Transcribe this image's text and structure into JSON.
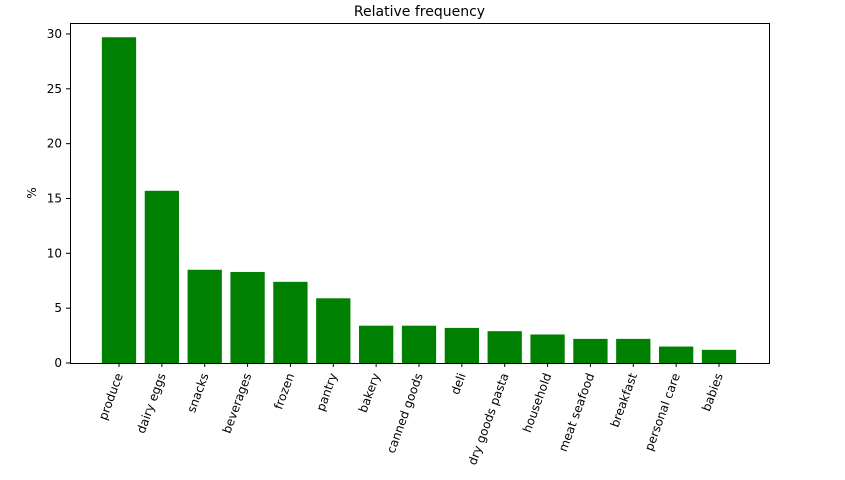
{
  "chart_data": {
    "type": "bar",
    "title": "Relative frequency",
    "xlabel": "",
    "ylabel": "%",
    "ylim": [
      0,
      31
    ],
    "yticks": [
      0,
      5,
      10,
      15,
      20,
      25,
      30
    ],
    "categories": [
      "produce",
      "dairy eggs",
      "snacks",
      "beverages",
      "frozen",
      "pantry",
      "bakery",
      "canned goods",
      "deli",
      "dry goods pasta",
      "household",
      "meat seafood",
      "breakfast",
      "personal care",
      "babies"
    ],
    "values": [
      29.7,
      15.7,
      8.5,
      8.3,
      7.4,
      5.9,
      3.4,
      3.4,
      3.2,
      2.9,
      2.6,
      2.2,
      2.2,
      1.5,
      1.2
    ],
    "bar_color": "#008000",
    "grid": false,
    "xtick_rotation": 70
  }
}
